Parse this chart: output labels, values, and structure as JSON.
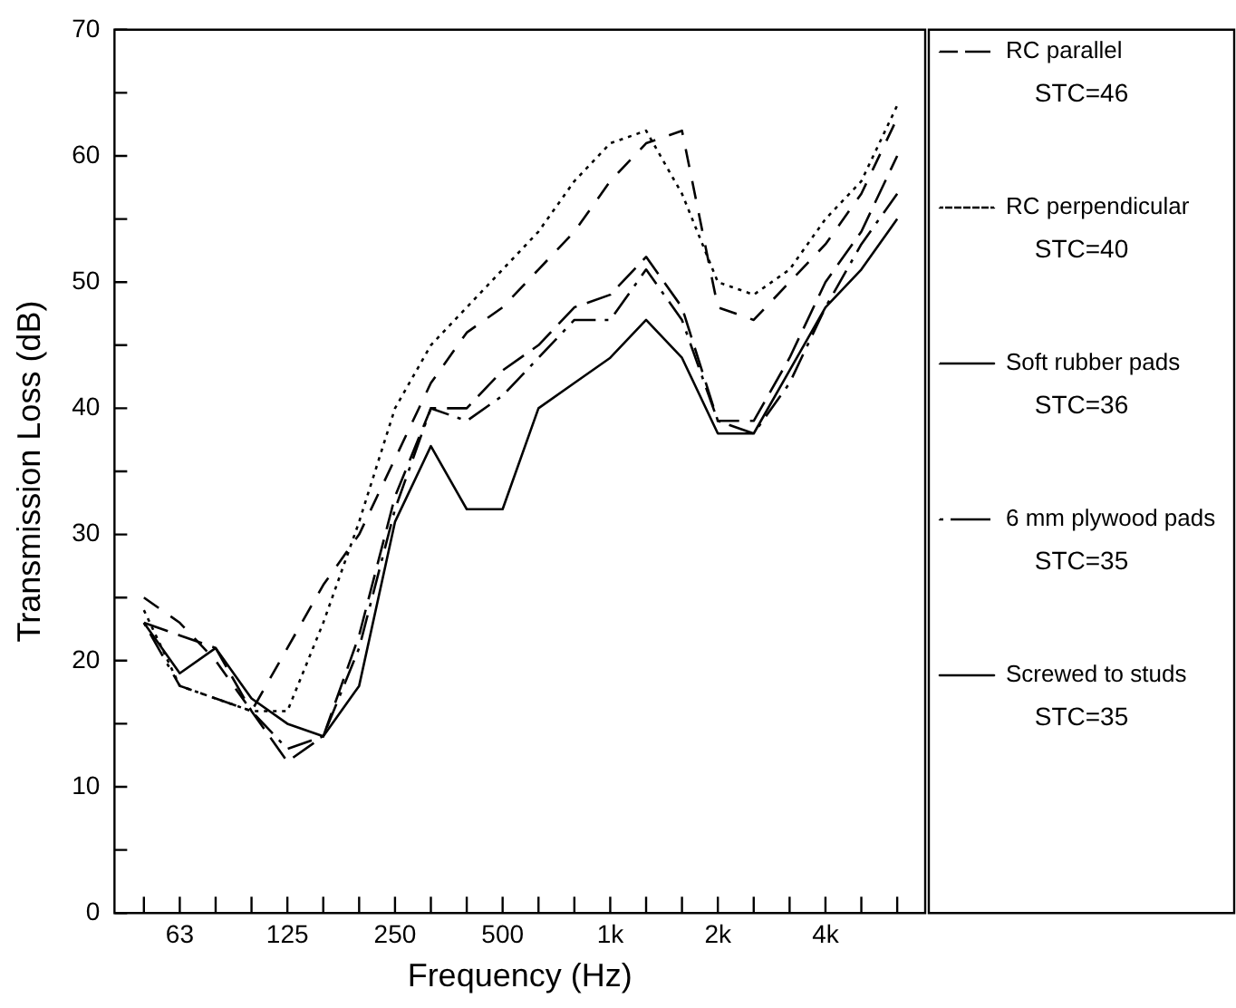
{
  "chart_data": {
    "type": "line",
    "xlabel": "Frequency (Hz)",
    "ylabel": "Transmission Loss (dB)",
    "categories": [
      null,
      "63",
      null,
      null,
      "125",
      null,
      null,
      "250",
      null,
      null,
      "500",
      null,
      null,
      "1k",
      null,
      null,
      "2k",
      null,
      null,
      "4k",
      null,
      null
    ],
    "series": [
      {
        "name": "RC parallel",
        "color": "#000000",
        "line_style": "dashed",
        "values": [
          25,
          23,
          20,
          16,
          21,
          26,
          30,
          36,
          42,
          46,
          48,
          51,
          54,
          58,
          61,
          62,
          48,
          47,
          50,
          53,
          57,
          63
        ]
      },
      {
        "name": "RC perpendicular",
        "color": "#000000",
        "line_style": "dotted",
        "values": [
          24,
          18,
          17,
          16,
          16,
          23,
          31,
          40,
          45,
          48,
          51,
          54,
          58,
          61,
          62,
          57,
          50,
          49,
          51,
          55,
          58,
          64
        ]
      },
      {
        "name": "Soft rubber pads",
        "color": "#000000",
        "line_style": "longdash",
        "values": [
          23,
          22,
          21,
          16,
          12,
          14,
          22,
          33,
          40,
          40,
          43,
          45,
          48,
          49,
          52,
          48,
          39,
          39,
          44,
          50,
          54,
          60
        ]
      },
      {
        "name": "6 mm plywood pads",
        "color": "#000000",
        "line_style": "dashdot",
        "values": [
          23,
          18,
          17,
          16,
          13,
          14,
          21,
          32,
          40,
          39,
          41,
          44,
          47,
          47,
          51,
          47,
          39,
          38,
          42,
          48,
          53,
          57
        ]
      },
      {
        "name": "Screwed to studs",
        "color": "#000000",
        "line_style": "solid",
        "values": [
          23,
          19,
          21,
          17,
          15,
          14,
          18,
          31,
          37,
          32,
          32,
          40,
          42,
          44,
          47,
          44,
          38,
          38,
          43,
          48,
          51,
          55
        ]
      }
    ],
    "annotations": [
      "STC=46",
      "STC=40",
      "STC=36",
      "STC=35",
      "STC=35"
    ],
    "ylim": [
      0,
      70
    ],
    "yticks": [
      0,
      {
        "value": 5,
        "label": null
      },
      10,
      {
        "value": 15,
        "label": null
      },
      20,
      {
        "value": 25,
        "label": null
      },
      30,
      {
        "value": 35,
        "label": null
      },
      40,
      {
        "value": 45,
        "label": null
      },
      50,
      {
        "value": 55,
        "label": null
      },
      60,
      {
        "value": 65,
        "label": null
      },
      70
    ],
    "grid": false,
    "legend": "right",
    "marker": "none"
  }
}
